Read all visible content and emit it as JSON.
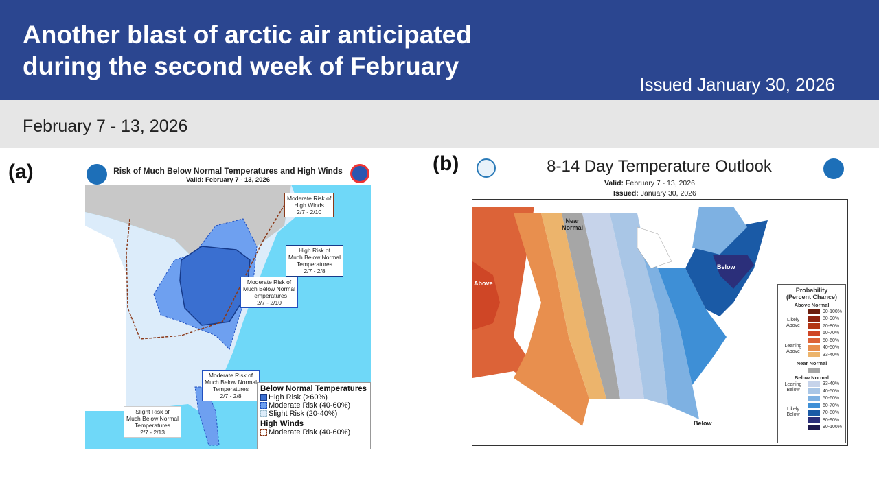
{
  "header": {
    "title_line1": "Another blast of arctic air anticipated",
    "title_line2": "during the second week of February",
    "issued": "Issued January 30, 2026",
    "color": "#2b4690"
  },
  "subheader": {
    "dates": "February 7 - 13, 2026"
  },
  "panel_a": {
    "label": "(a)",
    "title": "Risk of Much Below Normal Temperatures and High Winds",
    "valid": "Valid: February 7 - 13, 2026",
    "callouts": [
      {
        "l1": "Moderate Risk of",
        "l2": "High Winds",
        "l3": "2/7 - 2/10"
      },
      {
        "l1": "High Risk of",
        "l2": "Much Below Normal",
        "l3": "Temperatures",
        "l4": "2/7 - 2/8"
      },
      {
        "l1": "Moderate Risk of",
        "l2": "Much Below Normal",
        "l3": "Temperatures",
        "l4": "2/7 - 2/10"
      },
      {
        "l1": "Moderate Risk of",
        "l2": "Much Below Normal",
        "l3": "Temperatures",
        "l4": "2/7 - 2/8"
      },
      {
        "l1": "Slight Risk of",
        "l2": "Much Below Normal",
        "l3": "Temperatures",
        "l4": "2/7 - 2/13"
      }
    ],
    "legend": {
      "temps_heading": "Below Normal Temperatures",
      "high": "High Risk (>60%)",
      "moderate": "Moderate Risk (40-60%)",
      "slight": "Slight Risk (20-40%)",
      "winds_heading": "High Winds",
      "winds_moderate": "Moderate Risk (40-60%)"
    },
    "colors": {
      "high": "#3a6fd0",
      "moderate": "#6ea0f0",
      "slight": "#dcecfa",
      "ocean": "#6fd8f8",
      "canada": "#c8c8c8",
      "winds": "#8b3a1a"
    }
  },
  "panel_b": {
    "label": "(b)",
    "title": "8-14 Day Temperature Outlook",
    "valid_label": "Valid:",
    "valid": "February 7 - 13, 2026",
    "issued_label": "Issued:",
    "issued": "January 30, 2026",
    "map_labels": {
      "near_normal_1": "Near",
      "near_normal_2": "Normal",
      "above": "Above",
      "below_ne": "Below",
      "below_fl": "Below"
    },
    "legend": {
      "title1": "Probability",
      "title2": "(Percent Chance)",
      "above_heading": "Above Normal",
      "likely_above": "Likely Above",
      "leaning_above": "Leaning Above",
      "near_heading": "Near Normal",
      "below_heading": "Below Normal",
      "leaning_below": "Leaning Below",
      "likely_below": "Likely Below",
      "above": [
        {
          "range": "90-100%",
          "color": "#6b1e0e"
        },
        {
          "range": "80-90%",
          "color": "#8f2410"
        },
        {
          "range": "70-80%",
          "color": "#b33514"
        },
        {
          "range": "60-70%",
          "color": "#cf4626"
        },
        {
          "range": "50-60%",
          "color": "#dc6338"
        },
        {
          "range": "40-50%",
          "color": "#e88f4e"
        },
        {
          "range": "33-40%",
          "color": "#ecb46c"
        }
      ],
      "near_color": "#a6a6a6",
      "below": [
        {
          "range": "33-40%",
          "color": "#c6d3ea"
        },
        {
          "range": "40-50%",
          "color": "#a9c6e6"
        },
        {
          "range": "50-60%",
          "color": "#7eb1e2"
        },
        {
          "range": "60-70%",
          "color": "#3e8fd6"
        },
        {
          "range": "70-80%",
          "color": "#1a5aa6"
        },
        {
          "range": "80-90%",
          "color": "#2b2f7a"
        },
        {
          "range": "90-100%",
          "color": "#1e1a4e"
        }
      ]
    }
  }
}
